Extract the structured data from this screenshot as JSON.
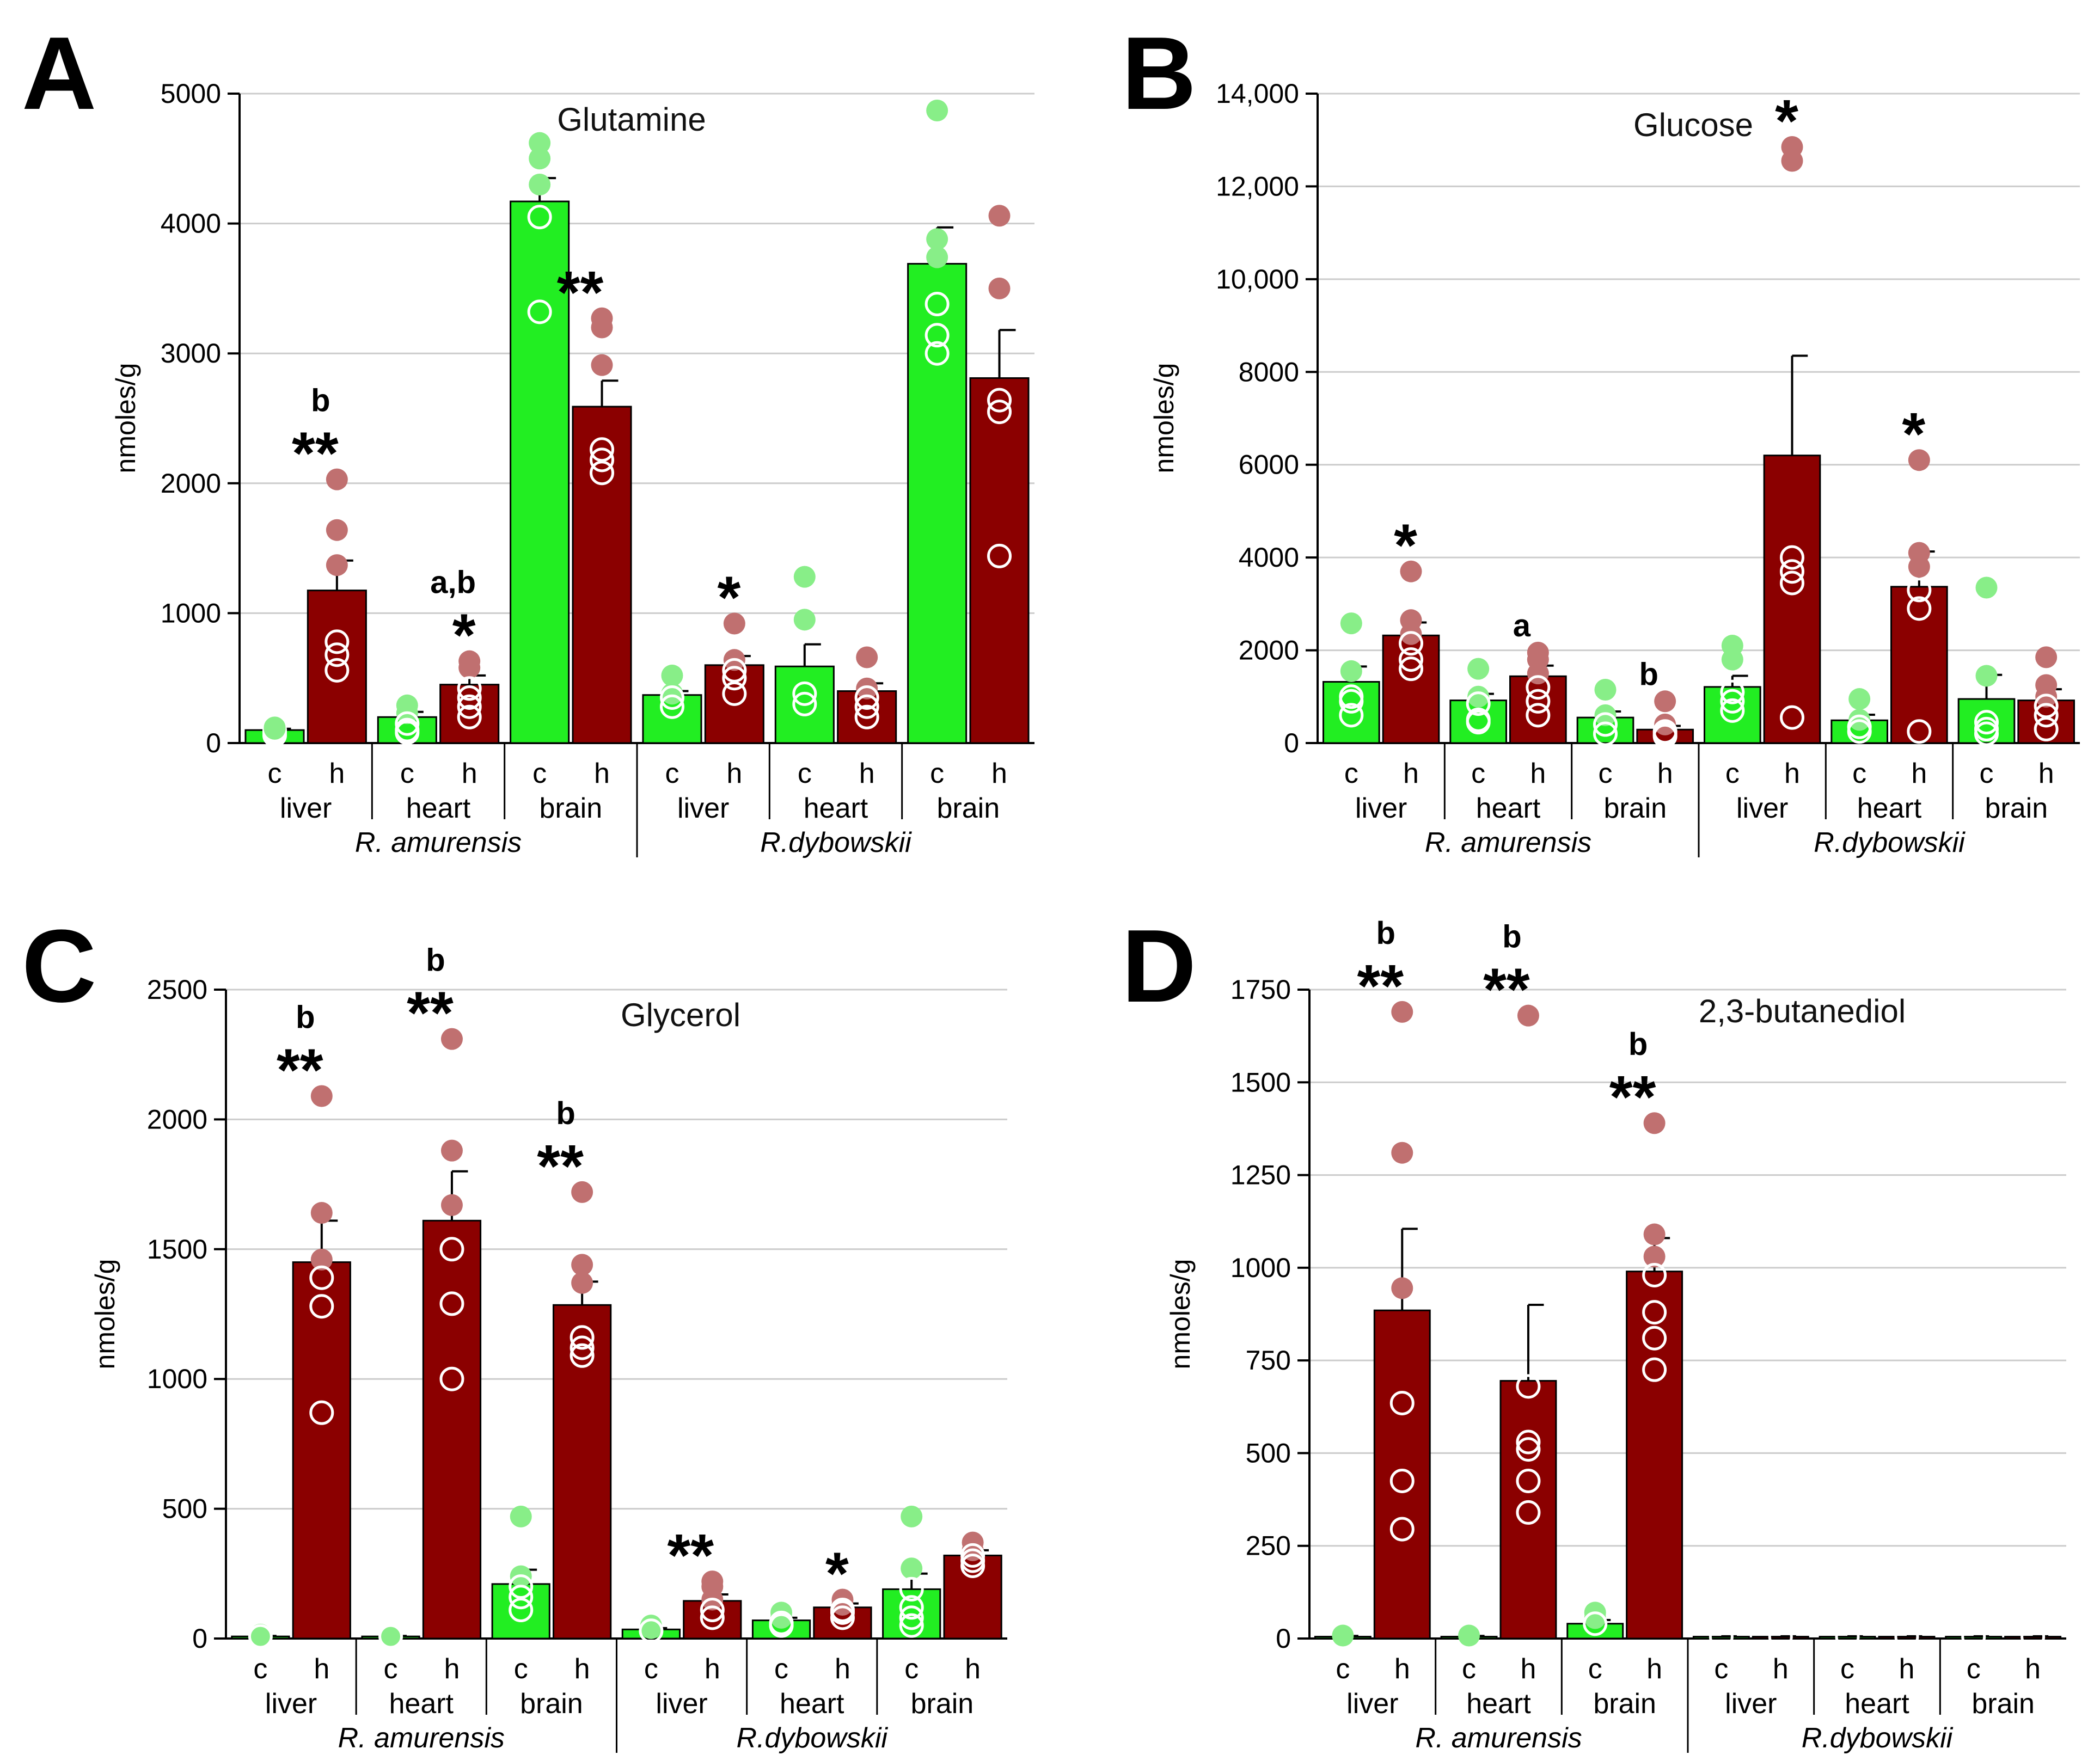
{
  "figure": {
    "species": [
      "R. amurensis",
      "R.dybowskii"
    ],
    "tissues": [
      "liver",
      "heart",
      "brain"
    ],
    "conditions": [
      "c",
      "h"
    ],
    "ylabel": "nmoles/g",
    "colors": {
      "control_bar": "#22ee22",
      "hypoxia_bar": "#8b0000",
      "control_point": "#88ee88",
      "hypoxia_point": "#c07070",
      "grid": "#cccccc",
      "axis": "#000000"
    }
  },
  "chart_data": [
    {
      "panel": "A",
      "type": "bar",
      "title": "Glutamine",
      "ylabel": "nmoles/g",
      "ylim": [
        0,
        5000
      ],
      "yticks": [
        0,
        1000,
        2000,
        3000,
        4000,
        5000
      ],
      "ytick_labels": [
        "0",
        "1000",
        "2000",
        "3000",
        "4000",
        "5000"
      ],
      "groups": [
        {
          "species": "R. amurensis",
          "tissue": "liver",
          "c": {
            "mean": 100,
            "err": 10,
            "points": [
              60,
              80,
              90,
              100,
              110,
              120
            ]
          },
          "h": {
            "mean": 1175,
            "err": 230,
            "points": [
              2030,
              1640,
              1370,
              780,
              680,
              560
            ]
          },
          "letter": "b",
          "stars": "**"
        },
        {
          "species": "R. amurensis",
          "tissue": "heart",
          "c": {
            "mean": 200,
            "err": 40,
            "points": [
              290,
              230,
              150,
              100,
              80
            ]
          },
          "h": {
            "mean": 450,
            "err": 70,
            "points": [
              630,
              580,
              420,
              350,
              280,
              200
            ]
          },
          "letter": "a,b",
          "stars": "*"
        },
        {
          "species": "R. amurensis",
          "tissue": "brain",
          "c": {
            "mean": 4170,
            "err": 180,
            "points": [
              4620,
              4500,
              4300,
              4050,
              3320
            ]
          },
          "h": {
            "mean": 2590,
            "err": 200,
            "points": [
              3270,
              3200,
              2910,
              2260,
              2180,
              2080
            ]
          },
          "letter": "",
          "stars": "**"
        },
        {
          "species": "R.dybowskii",
          "tissue": "liver",
          "c": {
            "mean": 370,
            "err": 30,
            "points": [
              520,
              380,
              350,
              280
            ]
          },
          "h": {
            "mean": 600,
            "err": 70,
            "points": [
              920,
              640,
              560,
              500,
              380
            ]
          },
          "letter": "",
          "stars": "*"
        },
        {
          "species": "R.dybowskii",
          "tissue": "heart",
          "c": {
            "mean": 590,
            "err": 170,
            "points": [
              1280,
              950,
              380,
              300
            ]
          },
          "h": {
            "mean": 400,
            "err": 60,
            "points": [
              660,
              420,
              350,
              280,
              200
            ]
          },
          "letter": "",
          "stars": ""
        },
        {
          "species": "R.dybowskii",
          "tissue": "brain",
          "c": {
            "mean": 3690,
            "err": 280,
            "points": [
              4870,
              3880,
              3740,
              3380,
              3140,
              3000
            ]
          },
          "h": {
            "mean": 2810,
            "err": 370,
            "points": [
              4060,
              3500,
              2640,
              2550,
              1440
            ]
          },
          "letter": "",
          "stars": ""
        }
      ],
      "annotations": []
    },
    {
      "panel": "B",
      "type": "bar",
      "title": "Glucose",
      "ylabel": "nmoles/g",
      "ylim": [
        0,
        14000
      ],
      "yticks": [
        0,
        2000,
        4000,
        6000,
        8000,
        10000,
        12000,
        14000
      ],
      "ytick_labels": [
        "0",
        "2000",
        "4000",
        "6000",
        "8000",
        "10,000",
        "12,000",
        "14,000"
      ],
      "groups": [
        {
          "species": "R. amurensis",
          "tissue": "liver",
          "c": {
            "mean": 1320,
            "err": 330,
            "points": [
              2580,
              1550,
              1000,
              900,
              600
            ]
          },
          "h": {
            "mean": 2320,
            "err": 280,
            "points": [
              3700,
              2650,
              2350,
              2150,
              1800,
              1600
            ]
          },
          "letter": "",
          "stars": "*"
        },
        {
          "species": "R. amurensis",
          "tissue": "heart",
          "c": {
            "mean": 920,
            "err": 140,
            "points": [
              1600,
              1000,
              850,
              500,
              450
            ]
          },
          "h": {
            "mean": 1440,
            "err": 230,
            "points": [
              1950,
              1800,
              1500,
              1200,
              900,
              600
            ]
          },
          "letter": "a",
          "stars": ""
        },
        {
          "species": "R. amurensis",
          "tissue": "brain",
          "c": {
            "mean": 550,
            "err": 130,
            "points": [
              1150,
              600,
              400,
              200
            ]
          },
          "h": {
            "mean": 290,
            "err": 80,
            "points": [
              900,
              400,
              250,
              200,
              150
            ]
          },
          "letter": "b",
          "stars": ""
        },
        {
          "species": "R.dybowskii",
          "tissue": "liver",
          "c": {
            "mean": 1210,
            "err": 240,
            "points": [
              2100,
              1800,
              1100,
              900,
              700
            ]
          },
          "h": {
            "mean": 6200,
            "err": 2150,
            "points": [
              12850,
              12550,
              4000,
              3700,
              3450,
              550
            ]
          },
          "letter": "",
          "stars": "*"
        },
        {
          "species": "R.dybowskii",
          "tissue": "heart",
          "c": {
            "mean": 490,
            "err": 120,
            "points": [
              950,
              500,
              350,
              250
            ]
          },
          "h": {
            "mean": 3370,
            "err": 760,
            "points": [
              6100,
              4100,
              3800,
              3300,
              2900,
              250
            ]
          },
          "letter": "",
          "stars": "*"
        },
        {
          "species": "R.dybowskii",
          "tissue": "brain",
          "c": {
            "mean": 950,
            "err": 520,
            "points": [
              3350,
              1450,
              450,
              300,
              200
            ]
          },
          "h": {
            "mean": 920,
            "err": 240,
            "points": [
              1850,
              1250,
              1000,
              800,
              600,
              300
            ]
          },
          "letter": "",
          "stars": ""
        }
      ],
      "annotations": []
    },
    {
      "panel": "C",
      "type": "bar",
      "title": "Glycerol",
      "ylabel": "nmoles/g",
      "ylim": [
        0,
        2500
      ],
      "yticks": [
        0,
        500,
        1000,
        1500,
        2000,
        2500
      ],
      "ytick_labels": [
        "0",
        "500",
        "1000",
        "1500",
        "2000",
        "2500"
      ],
      "groups": [
        {
          "species": "R. amurensis",
          "tissue": "liver",
          "c": {
            "mean": 8,
            "err": 2,
            "points": [
              15,
              10,
              8
            ]
          },
          "h": {
            "mean": 1450,
            "err": 160,
            "points": [
              2090,
              1640,
              1460,
              1390,
              1280,
              870
            ]
          },
          "letter": "b",
          "stars": "**"
        },
        {
          "species": "R. amurensis",
          "tissue": "heart",
          "c": {
            "mean": 8,
            "err": 2,
            "points": [
              12,
              8
            ]
          },
          "h": {
            "mean": 1610,
            "err": 190,
            "points": [
              2310,
              1880,
              1670,
              1500,
              1290,
              1000
            ]
          },
          "letter": "b",
          "stars": "**"
        },
        {
          "species": "R. amurensis",
          "tissue": "brain",
          "c": {
            "mean": 210,
            "err": 55,
            "points": [
              470,
              240,
              200,
              160,
              110
            ]
          },
          "h": {
            "mean": 1285,
            "err": 90,
            "points": [
              1720,
              1440,
              1370,
              1160,
              1120,
              1090
            ]
          },
          "letter": "b",
          "stars": "**"
        },
        {
          "species": "R.dybowskii",
          "tissue": "liver",
          "c": {
            "mean": 35,
            "err": 5,
            "points": [
              50,
              40,
              30
            ]
          },
          "h": {
            "mean": 145,
            "err": 25,
            "points": [
              220,
              200,
              150,
              110,
              80
            ]
          },
          "letter": "",
          "stars": "**"
        },
        {
          "species": "R.dybowskii",
          "tissue": "heart",
          "c": {
            "mean": 70,
            "err": 10,
            "points": [
              100,
              80,
              60,
              50
            ]
          },
          "h": {
            "mean": 120,
            "err": 15,
            "points": [
              150,
              130,
              110,
              100,
              80
            ]
          },
          "letter": "",
          "stars": "*"
        },
        {
          "species": "R.dybowskii",
          "tissue": "brain",
          "c": {
            "mean": 190,
            "err": 60,
            "points": [
              470,
              270,
              190,
              120,
              80,
              50
            ]
          },
          "h": {
            "mean": 320,
            "err": 20,
            "points": [
              370,
              340,
              320,
              300,
              280
            ]
          },
          "letter": "",
          "stars": ""
        }
      ],
      "annotations": []
    },
    {
      "panel": "D",
      "type": "bar",
      "title": "2,3-butanediol",
      "ylabel": "nmoles/g",
      "ylim": [
        0,
        1750
      ],
      "yticks": [
        0,
        250,
        500,
        750,
        1000,
        1250,
        1500,
        1750
      ],
      "ytick_labels": [
        "0",
        "250",
        "500",
        "750",
        "1000",
        "1250",
        "1500",
        "1750"
      ],
      "groups": [
        {
          "species": "R. amurensis",
          "tissue": "liver",
          "c": {
            "mean": 5,
            "err": 2,
            "points": [
              8
            ]
          },
          "h": {
            "mean": 885,
            "err": 220,
            "points": [
              1690,
              1310,
              945,
              635,
              425,
              295
            ]
          },
          "letter": "b",
          "stars": "**"
        },
        {
          "species": "R. amurensis",
          "tissue": "heart",
          "c": {
            "mean": 5,
            "err": 2,
            "points": [
              8
            ]
          },
          "h": {
            "mean": 695,
            "err": 205,
            "points": [
              1680,
              680,
              530,
              510,
              425,
              340
            ]
          },
          "letter": "b",
          "stars": "**"
        },
        {
          "species": "R. amurensis",
          "tissue": "brain",
          "c": {
            "mean": 40,
            "err": 10,
            "points": [
              70,
              55,
              40
            ]
          },
          "h": {
            "mean": 990,
            "err": 90,
            "points": [
              1390,
              1090,
              1030,
              980,
              880,
              810,
              725
            ]
          },
          "letter": "b",
          "stars": "**"
        },
        {
          "species": "R.dybowskii",
          "tissue": "liver",
          "c": {
            "mean": 5,
            "err": 1,
            "points": [
              5
            ]
          },
          "h": {
            "mean": 5,
            "err": 1,
            "points": [
              5
            ]
          },
          "letter": "",
          "stars": ""
        },
        {
          "species": "R.dybowskii",
          "tissue": "heart",
          "c": {
            "mean": 5,
            "err": 1,
            "points": [
              5
            ]
          },
          "h": {
            "mean": 5,
            "err": 1,
            "points": [
              5
            ]
          },
          "letter": "",
          "stars": ""
        },
        {
          "species": "R.dybowskii",
          "tissue": "brain",
          "c": {
            "mean": 5,
            "err": 1,
            "points": [
              5
            ]
          },
          "h": {
            "mean": 5,
            "err": 1,
            "points": [
              5
            ]
          },
          "letter": "",
          "stars": ""
        }
      ],
      "annotations": []
    }
  ]
}
